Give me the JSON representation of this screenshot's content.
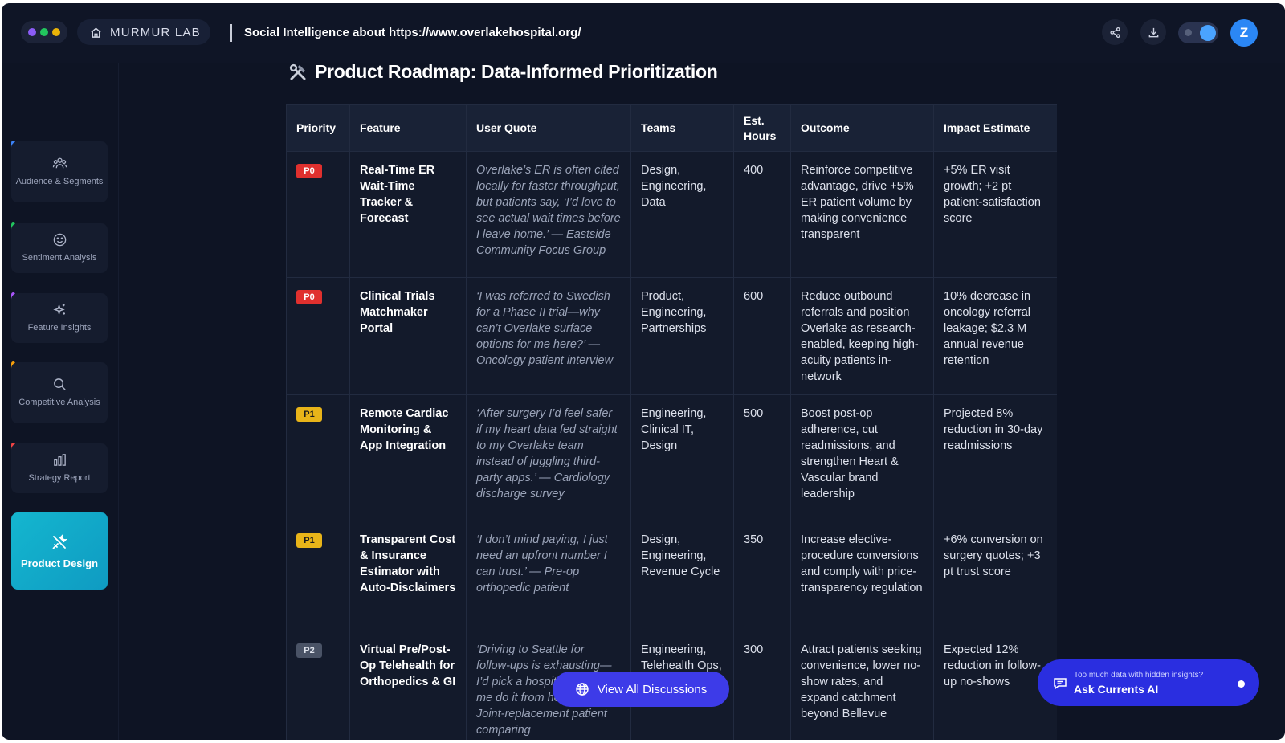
{
  "window": {
    "dot_colors": [
      "#8b5cf6",
      "#22c55e",
      "#eab308"
    ]
  },
  "header": {
    "brand": "MURMUR LAB",
    "title": "Social Intelligence about https://www.overlakehospital.org/",
    "avatar_letter": "Z",
    "icons": [
      "share-icon",
      "download-icon",
      "theme-toggle"
    ]
  },
  "sidebar": {
    "items": [
      {
        "label": "Audience & Segments",
        "icon": "people-icon",
        "accent": "#3b82f6"
      },
      {
        "label": "Sentiment Analysis",
        "icon": "smile-icon",
        "accent": "#22c55e"
      },
      {
        "label": "Feature Insights",
        "icon": "sparkles-icon",
        "accent": "#a855f7"
      },
      {
        "label": "Competitive Analysis",
        "icon": "search-icon",
        "accent": "#f59e0b"
      },
      {
        "label": "Strategy Report",
        "icon": "bar-chart-icon",
        "accent": "#ef4444"
      },
      {
        "label": "Product Design",
        "icon": "tools-icon",
        "active": true
      }
    ]
  },
  "main": {
    "heading": "Product Roadmap: Data-Informed Prioritization",
    "table": {
      "columns": [
        "Priority",
        "Feature",
        "User Quote",
        "Teams",
        "Est. Hours",
        "Outcome",
        "Impact Estimate"
      ],
      "rows": [
        {
          "priority": "P0",
          "feature": "Real-Time ER Wait-Time Tracker & Forecast",
          "quote": "Overlake’s ER is often cited locally for faster throughput, but patients say, ‘I’d love to see actual wait times before I leave home.’ — Eastside Community Focus Group",
          "teams": "Design, Engineering, Data",
          "hours": "400",
          "outcome": "Reinforce competitive advantage, drive +5% ER patient volume by making convenience transparent",
          "impact": "+5% ER visit growth; +2 pt patient-satisfaction score"
        },
        {
          "priority": "P0",
          "feature": "Clinical Trials Matchmaker Portal",
          "quote": "‘I was referred to Swedish for a Phase II trial—why can’t Overlake surface options for me here?’ — Oncology patient interview",
          "teams": "Product, Engineering, Partnerships",
          "hours": "600",
          "outcome": "Reduce outbound referrals and position Overlake as research-enabled, keeping high-acuity patients in-network",
          "impact": "10% decrease in oncology referral leakage; $2.3 M annual revenue retention"
        },
        {
          "priority": "P1",
          "feature": "Remote Cardiac Monitoring & App Integration",
          "quote": "‘After surgery I’d feel safer if my heart data fed straight to my Overlake team instead of juggling third-party apps.’ — Cardiology discharge survey",
          "teams": "Engineering, Clinical IT, Design",
          "hours": "500",
          "outcome": "Boost post-op adherence, cut readmissions, and strengthen Heart & Vascular brand leadership",
          "impact": "Projected 8% reduction in 30-day readmissions"
        },
        {
          "priority": "P1",
          "feature": "Transparent Cost & Insurance Estimator with Auto-Disclaimers",
          "quote": "‘I don’t mind paying, I just need an upfront number I can trust.’ — Pre-op orthopedic patient",
          "teams": "Design, Engineering, Revenue Cycle",
          "hours": "350",
          "outcome": "Increase elective-procedure conversions and comply with price-transparency regulation",
          "impact": "+6% conversion on surgery quotes; +3 pt trust score"
        },
        {
          "priority": "P2",
          "feature": "Virtual Pre/Post-Op Telehealth for Orthopedics & GI",
          "quote": "‘Driving to Seattle for follow-ups is exhausting—I’d pick a hospital that lets me do it from home.’ — Joint-replacement patient comparing",
          "teams": "Engineering, Telehealth Ops, Design",
          "hours": "300",
          "outcome": "Attract patients seeking convenience, lower no-show rates, and expand catchment beyond Bellevue",
          "impact": "Expected 12% reduction in follow-up no-shows"
        }
      ]
    }
  },
  "floating": {
    "view_all": "View All Discussions",
    "ask_small": "Too much data with hidden insights?",
    "ask_big": "Ask Currents AI"
  },
  "colors": {
    "background": "#0e1424",
    "accent_active": "#14b6cf",
    "primary_button": "#3d3be8",
    "p0": "#e0302e",
    "p1": "#e8b419",
    "p2": "#4a5366"
  }
}
